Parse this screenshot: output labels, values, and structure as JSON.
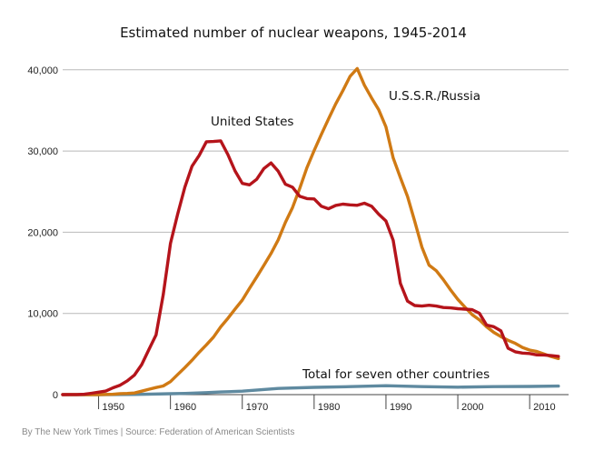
{
  "chart_data": {
    "type": "line",
    "title": "Estimated number of nuclear weapons, 1945-2014",
    "xlabel": "",
    "ylabel": "",
    "xlim": [
      1945,
      2014
    ],
    "ylim": [
      0,
      42000
    ],
    "y_ticks": [
      0,
      10000,
      20000,
      30000,
      40000
    ],
    "y_tick_labels": [
      "0",
      "10,000",
      "20,000",
      "30,000",
      "40,000"
    ],
    "x_ticks": [
      1950,
      1960,
      1970,
      1980,
      1990,
      2000,
      2010
    ],
    "x_tick_labels": [
      "1950",
      "1960",
      "1970",
      "1980",
      "1990",
      "2000",
      "2010"
    ],
    "grid": true,
    "series": [
      {
        "name": "United States",
        "color": "#b5141b",
        "x": [
          1945,
          1946,
          1947,
          1948,
          1949,
          1950,
          1951,
          1952,
          1953,
          1954,
          1955,
          1956,
          1957,
          1958,
          1959,
          1960,
          1961,
          1962,
          1963,
          1964,
          1965,
          1966,
          1967,
          1968,
          1969,
          1970,
          1971,
          1972,
          1973,
          1974,
          1975,
          1976,
          1977,
          1978,
          1979,
          1980,
          1981,
          1982,
          1983,
          1984,
          1985,
          1986,
          1987,
          1988,
          1989,
          1990,
          1991,
          1992,
          1993,
          1994,
          1995,
          1996,
          1997,
          1998,
          1999,
          2000,
          2001,
          2002,
          2003,
          2004,
          2005,
          2006,
          2007,
          2008,
          2009,
          2010,
          2011,
          2012,
          2013,
          2014
        ],
        "values": [
          2,
          9,
          13,
          50,
          170,
          299,
          438,
          841,
          1169,
          1703,
          2422,
          3692,
          5543,
          7345,
          12298,
          18638,
          22229,
          25540,
          28133,
          29463,
          31139,
          31175,
          31255,
          29561,
          27552,
          26008,
          25830,
          26516,
          27835,
          28537,
          27519,
          25914,
          25542,
          24418,
          24138,
          24104,
          23208,
          22886,
          23305,
          23459,
          23368,
          23317,
          23575,
          23205,
          22217,
          21392,
          19008,
          13708,
          11511,
          10979,
          10904,
          11011,
          10903,
          10732,
          10685,
          10577,
          10526,
          10457,
          10027,
          8570,
          8360,
          7853,
          5709,
          5273,
          5113,
          5066,
          4897,
          4881,
          4804,
          4717
        ]
      },
      {
        "name": "U.S.S.R./Russia",
        "color": "#d07a14",
        "x": [
          1945,
          1946,
          1947,
          1948,
          1949,
          1950,
          1951,
          1952,
          1953,
          1954,
          1955,
          1956,
          1957,
          1958,
          1959,
          1960,
          1961,
          1962,
          1963,
          1964,
          1965,
          1966,
          1967,
          1968,
          1969,
          1970,
          1971,
          1972,
          1973,
          1974,
          1975,
          1976,
          1977,
          1978,
          1979,
          1980,
          1981,
          1982,
          1983,
          1984,
          1985,
          1986,
          1987,
          1988,
          1989,
          1990,
          1991,
          1992,
          1993,
          1994,
          1995,
          1996,
          1997,
          1998,
          1999,
          2000,
          2001,
          2002,
          2003,
          2004,
          2005,
          2006,
          2007,
          2008,
          2009,
          2010,
          2011,
          2012,
          2013,
          2014
        ],
        "values": [
          0,
          0,
          0,
          0,
          1,
          5,
          25,
          50,
          120,
          150,
          200,
          426,
          660,
          869,
          1060,
          1605,
          2471,
          3322,
          4238,
          5221,
          6129,
          7089,
          8339,
          9399,
          10538,
          11643,
          13092,
          14478,
          15915,
          17385,
          19055,
          21205,
          23044,
          25393,
          27935,
          30062,
          32049,
          33952,
          35804,
          37431,
          39197,
          40159,
          38107,
          36538,
          35078,
          32980,
          29154,
          26734,
          24403,
          21339,
          18179,
          15943,
          15263,
          14145,
          12893,
          11721,
          10758,
          9848,
          9213,
          8349,
          7668,
          7143,
          6683,
          6315,
          5814,
          5487,
          5312,
          4990,
          4690,
          4450
        ]
      },
      {
        "name": "Total for seven other countries",
        "color": "#5f8aa0",
        "x": [
          1945,
          1950,
          1955,
          1960,
          1962,
          1965,
          1967,
          1970,
          1975,
          1980,
          1985,
          1990,
          1995,
          2000,
          2005,
          2010,
          2014
        ],
        "values": [
          0,
          0,
          20,
          110,
          150,
          250,
          330,
          420,
          760,
          900,
          980,
          1100,
          980,
          920,
          990,
          1010,
          1050
        ]
      }
    ],
    "annotations": [
      {
        "text": "United States",
        "series": "United States"
      },
      {
        "text": "U.S.S.R./Russia",
        "series": "U.S.S.R./Russia"
      },
      {
        "text": "Total for seven other countries",
        "series": "Total for seven other countries"
      }
    ]
  },
  "footer": "By The New York Times  |  Source: Federation of American Scientists"
}
